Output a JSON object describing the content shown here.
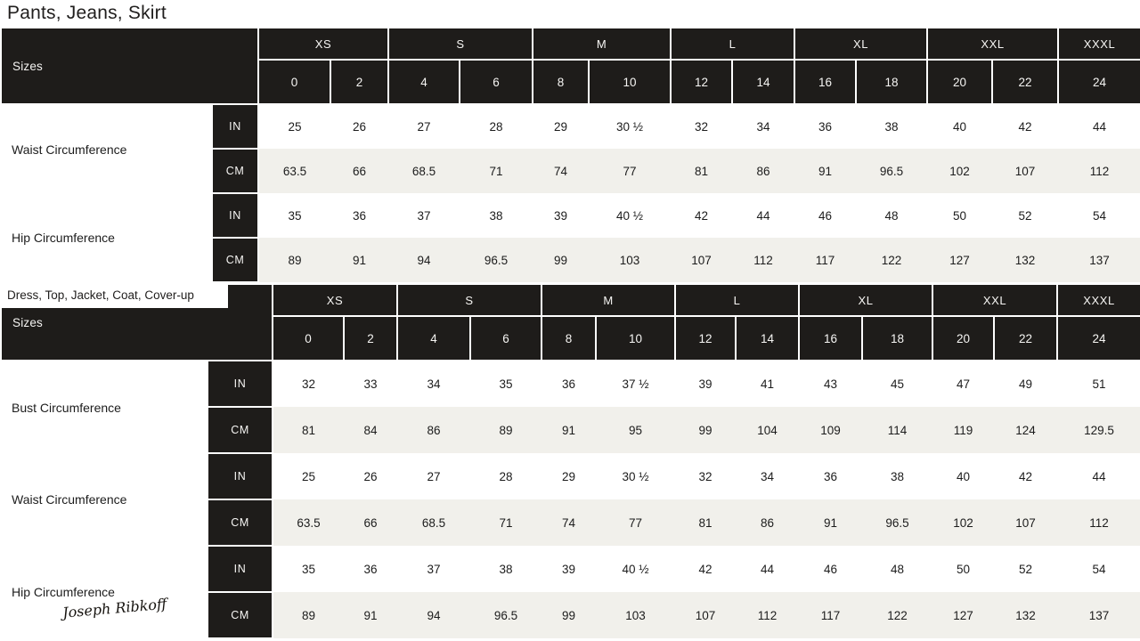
{
  "colors": {
    "header_bg": "#1e1c1a",
    "header_text": "#f6f5f3",
    "row_alt_bg": "#f1f0eb",
    "page_bg": "#ffffff",
    "text": "#1c1c1c"
  },
  "brand": {
    "logo_text": "Joseph Ribkoff"
  },
  "size_groups": [
    {
      "label": "XS",
      "span": 2
    },
    {
      "label": "S",
      "span": 2
    },
    {
      "label": "M",
      "span": 2
    },
    {
      "label": "L",
      "span": 2
    },
    {
      "label": "XL",
      "span": 2
    },
    {
      "label": "XXL",
      "span": 2
    },
    {
      "label": "XXXL",
      "span": 1
    }
  ],
  "numeric_sizes": [
    "0",
    "2",
    "4",
    "6",
    "8",
    "10",
    "12",
    "14",
    "16",
    "18",
    "20",
    "22",
    "24"
  ],
  "tables": [
    {
      "title": "Pants, Jeans, Skirt",
      "sizes_label": "Sizes",
      "rows": [
        {
          "label": "Waist Circumference",
          "units": [
            {
              "unit": "IN",
              "values": [
                "25",
                "26",
                "27",
                "28",
                "29",
                "30 ½",
                "32",
                "34",
                "36",
                "38",
                "40",
                "42",
                "44"
              ]
            },
            {
              "unit": "CM",
              "values": [
                "63.5",
                "66",
                "68.5",
                "71",
                "74",
                "77",
                "81",
                "86",
                "91",
                "96.5",
                "102",
                "107",
                "112"
              ]
            }
          ]
        },
        {
          "label": "Hip Circumference",
          "units": [
            {
              "unit": "IN",
              "values": [
                "35",
                "36",
                "37",
                "38",
                "39",
                "40 ½",
                "42",
                "44",
                "46",
                "48",
                "50",
                "52",
                "54"
              ]
            },
            {
              "unit": "CM",
              "values": [
                "89",
                "91",
                "94",
                "96.5",
                "99",
                "103",
                "107",
                "112",
                "117",
                "122",
                "127",
                "132",
                "137"
              ]
            }
          ]
        }
      ]
    },
    {
      "title": "Dress, Top, Jacket, Coat, Cover-up",
      "sizes_label": "Sizes",
      "rows": [
        {
          "label": "Bust Circumference",
          "units": [
            {
              "unit": "IN",
              "values": [
                "32",
                "33",
                "34",
                "35",
                "36",
                "37 ½",
                "39",
                "41",
                "43",
                "45",
                "47",
                "49",
                "51"
              ]
            },
            {
              "unit": "CM",
              "values": [
                "81",
                "84",
                "86",
                "89",
                "91",
                "95",
                "99",
                "104",
                "109",
                "114",
                "119",
                "124",
                "129.5"
              ]
            }
          ]
        },
        {
          "label": "Waist Circumference",
          "units": [
            {
              "unit": "IN",
              "values": [
                "25",
                "26",
                "27",
                "28",
                "29",
                "30 ½",
                "32",
                "34",
                "36",
                "38",
                "40",
                "42",
                "44"
              ]
            },
            {
              "unit": "CM",
              "values": [
                "63.5",
                "66",
                "68.5",
                "71",
                "74",
                "77",
                "81",
                "86",
                "91",
                "96.5",
                "102",
                "107",
                "112"
              ]
            }
          ]
        },
        {
          "label": "Hip Circumference",
          "units": [
            {
              "unit": "IN",
              "values": [
                "35",
                "36",
                "37",
                "38",
                "39",
                "40 ½",
                "42",
                "44",
                "46",
                "48",
                "50",
                "52",
                "54"
              ]
            },
            {
              "unit": "CM",
              "values": [
                "89",
                "91",
                "94",
                "96.5",
                "99",
                "103",
                "107",
                "112",
                "117",
                "122",
                "127",
                "132",
                "137"
              ]
            }
          ]
        }
      ]
    }
  ]
}
